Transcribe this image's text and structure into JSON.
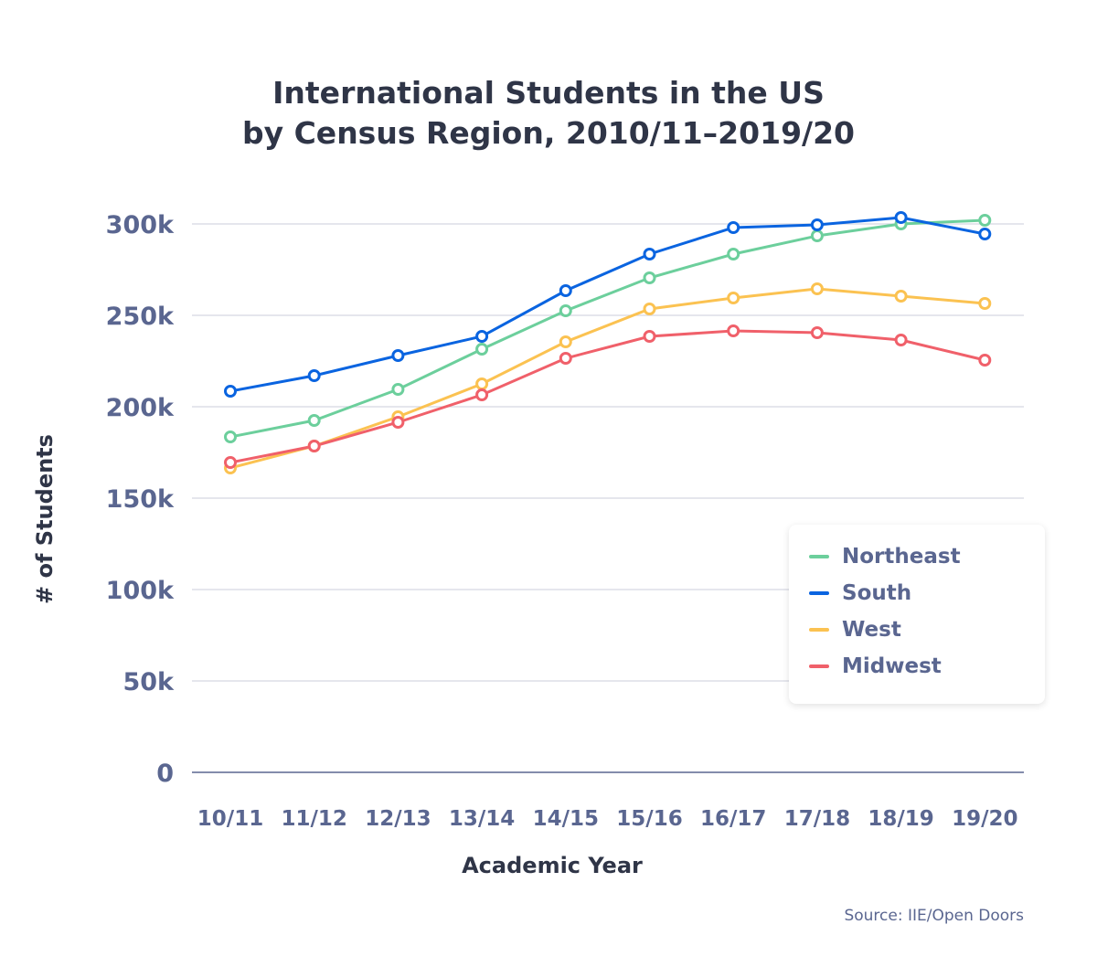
{
  "chart_data": {
    "type": "line",
    "title": [
      "International Students in the US",
      "by Census Region, 2010/11–2019/20"
    ],
    "xlabel": "Academic Year",
    "ylabel": "# of Students",
    "ylim": [
      0,
      300000
    ],
    "yticks": [
      0,
      50000,
      100000,
      150000,
      200000,
      250000,
      300000
    ],
    "ytick_labels": [
      "0",
      "50k",
      "100k",
      "150k",
      "200k",
      "250k",
      "300k"
    ],
    "grid": true,
    "legend_position": "bottom-right",
    "categories": [
      "10/11",
      "11/12",
      "12/13",
      "13/14",
      "14/15",
      "15/16",
      "16/17",
      "17/18",
      "18/19",
      "19/20"
    ],
    "series": [
      {
        "name": "Northeast",
        "color": "#6ccf9c",
        "values": [
          183500,
          192500,
          209500,
          231500,
          252500,
          270500,
          283500,
          293500,
          300000,
          302000
        ]
      },
      {
        "name": "South",
        "color": "#0a64e0",
        "values": [
          208500,
          217000,
          228000,
          238500,
          263500,
          283500,
          298000,
          299500,
          303500,
          294500
        ]
      },
      {
        "name": "West",
        "color": "#fbc251",
        "values": [
          166500,
          178500,
          194500,
          212500,
          235500,
          253500,
          259500,
          264500,
          260500,
          256500
        ]
      },
      {
        "name": "Midwest",
        "color": "#f0606a",
        "values": [
          169500,
          178500,
          191500,
          206500,
          226500,
          238500,
          241500,
          240500,
          236500,
          225500
        ]
      }
    ],
    "source": "Source: IIE/Open Doors"
  }
}
